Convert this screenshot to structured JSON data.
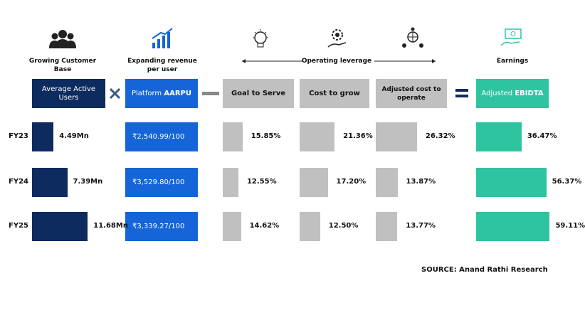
{
  "labels": {
    "customer": "Growing Customer Base",
    "revenue": "Expanding revenue per user",
    "leverage": "Operating leverage",
    "earnings": "Earnings"
  },
  "boxes": {
    "users": "Average Active Users",
    "aarpu_prefix": "Platform",
    "aarpu_bold": "AARPU",
    "goal": "Goal to Serve",
    "cost": "Cost to grow",
    "adjusted": "Adjusted cost to operate",
    "ebitda_prefix": "Adjusted",
    "ebitda_bold": "EBIDTA"
  },
  "years": [
    "FY23",
    "FY24",
    "FY25"
  ],
  "users": {
    "values": [
      4.49,
      7.39,
      11.68
    ],
    "value_labels": [
      "4.49Mn",
      "7.39Mn",
      "11.68Mn"
    ]
  },
  "aarpu": [
    "₹2,540.99/100",
    "₹3,529.80/100",
    "₹3,339.27/100"
  ],
  "goal": {
    "values": [
      15.85,
      12.55,
      14.62
    ],
    "value_labels": [
      "15.85%",
      "12.55%",
      "14.62%"
    ]
  },
  "cost": {
    "values": [
      21.36,
      17.2,
      12.5
    ],
    "value_labels": [
      "21.36%",
      "17.20%",
      "12.50%"
    ]
  },
  "adjusted": {
    "values": [
      26.32,
      13.87,
      13.77
    ],
    "value_labels": [
      "26.32%",
      "13.87%",
      "13.77%"
    ]
  },
  "ebitda": {
    "values": [
      36.47,
      56.37,
      59.11
    ],
    "value_labels": [
      "36.47%",
      "56.37%",
      "59.11%"
    ]
  },
  "source": "SOURCE: Anand Rathi Research"
}
